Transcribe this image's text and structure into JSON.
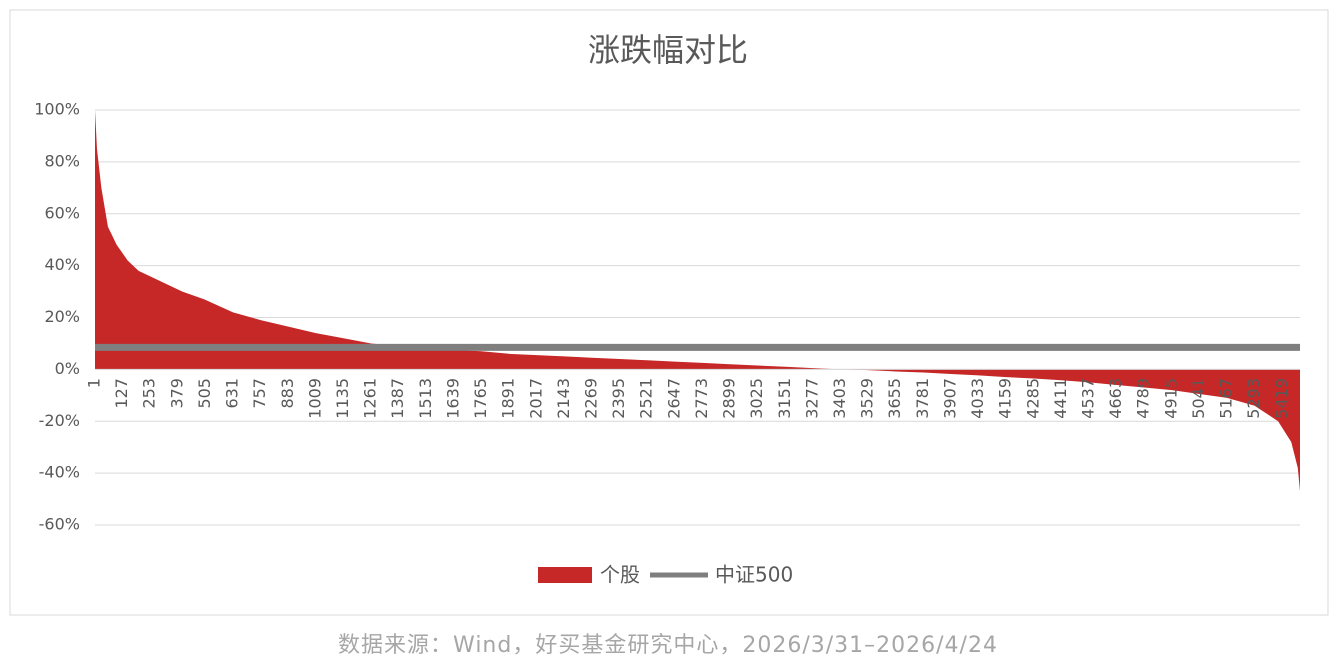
{
  "chart_data": {
    "type": "area",
    "title": "涨跌幅对比",
    "x": [
      1,
      10,
      30,
      60,
      100,
      150,
      200,
      300,
      400,
      500,
      631,
      757,
      883,
      1009,
      1135,
      1261,
      1387,
      1513,
      1639,
      1765,
      1891,
      2017,
      2143,
      2269,
      2395,
      2521,
      2647,
      2773,
      2899,
      3025,
      3151,
      3277,
      3403,
      3529,
      3655,
      3781,
      3907,
      4033,
      4159,
      4285,
      4411,
      4537,
      4663,
      4789,
      4915,
      5041,
      5167,
      5293,
      5400,
      5460,
      5490,
      5500
    ],
    "series": [
      {
        "name": "个股",
        "color": "#c62828",
        "values": [
          100,
          85,
          70,
          55,
          48,
          42,
          38,
          34,
          30,
          27,
          22,
          19,
          16.5,
          14,
          12,
          10,
          9,
          8,
          7.5,
          7,
          6,
          5.5,
          5,
          4.5,
          4,
          3.5,
          3,
          2.5,
          2,
          1.5,
          1,
          0.5,
          0,
          -0.3,
          -0.8,
          -1.2,
          -1.8,
          -2.3,
          -3,
          -3.5,
          -4.2,
          -5,
          -6,
          -7,
          -8,
          -9.5,
          -11,
          -14,
          -20,
          -28,
          -38,
          -47
        ]
      },
      {
        "name": "中证500",
        "color": "#7f7f7f",
        "value": 8.5
      }
    ],
    "xlim": [
      1,
      5500
    ],
    "xticks": [
      1,
      127,
      253,
      379,
      505,
      631,
      757,
      883,
      1009,
      1135,
      1261,
      1387,
      1513,
      1639,
      1765,
      1891,
      2017,
      2143,
      2269,
      2395,
      2521,
      2647,
      2773,
      2899,
      3025,
      3151,
      3277,
      3403,
      3529,
      3655,
      3781,
      3907,
      4033,
      4159,
      4285,
      4411,
      4537,
      4663,
      4789,
      4915,
      5041,
      5167,
      5293,
      5419
    ],
    "ylim": [
      -60,
      100
    ],
    "yticks": [
      {
        "value": -60,
        "label": "-60%"
      },
      {
        "value": -40,
        "label": "-40%"
      },
      {
        "value": -20,
        "label": "-20%"
      },
      {
        "value": 0,
        "label": "0%"
      },
      {
        "value": 20,
        "label": "20%"
      },
      {
        "value": 40,
        "label": "40%"
      },
      {
        "value": 60,
        "label": "60%"
      },
      {
        "value": 80,
        "label": "80%"
      },
      {
        "value": 100,
        "label": "100%"
      }
    ],
    "grid": true
  },
  "source": "数据来源：Wind，好买基金研究中心，2026/3/31–2026/4/24"
}
